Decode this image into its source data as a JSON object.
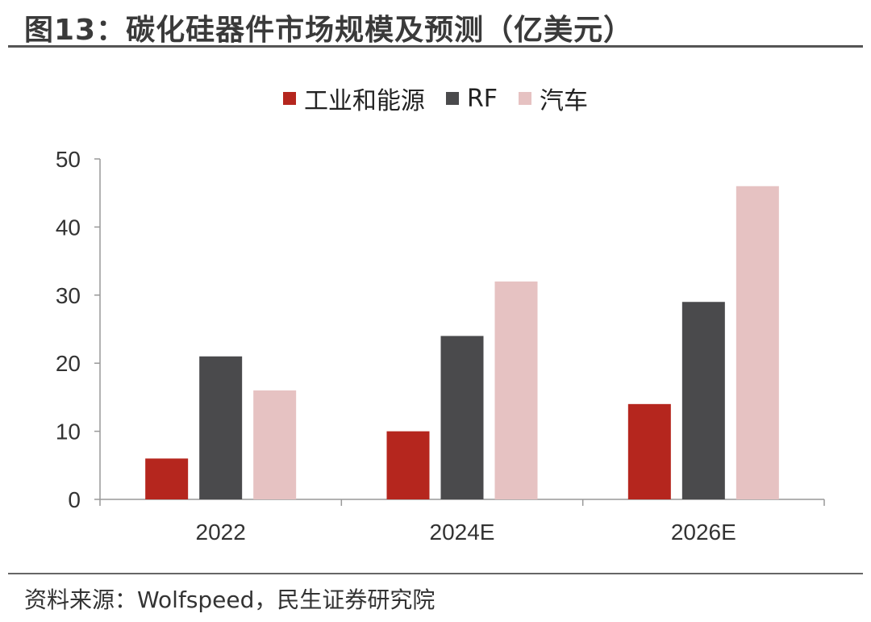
{
  "title": "图13：碳化硅器件市场规模及预测（亿美元）",
  "source": "资料来源：Wolfspeed，民生证券研究院",
  "chart_data": {
    "type": "bar",
    "categories": [
      "2022",
      "2024E",
      "2026E"
    ],
    "series": [
      {
        "name": "工业和能源",
        "color": "#b5261e",
        "values": [
          6,
          10,
          14
        ]
      },
      {
        "name": "RF",
        "color": "#4a4a4c",
        "values": [
          21,
          24,
          29
        ]
      },
      {
        "name": "汽车",
        "color": "#e6c2c2",
        "values": [
          16,
          32,
          46
        ]
      }
    ],
    "ylim": [
      0,
      50
    ],
    "yticks": [
      0,
      10,
      20,
      30,
      40,
      50
    ],
    "legend_position": "top-center",
    "grid": false
  }
}
